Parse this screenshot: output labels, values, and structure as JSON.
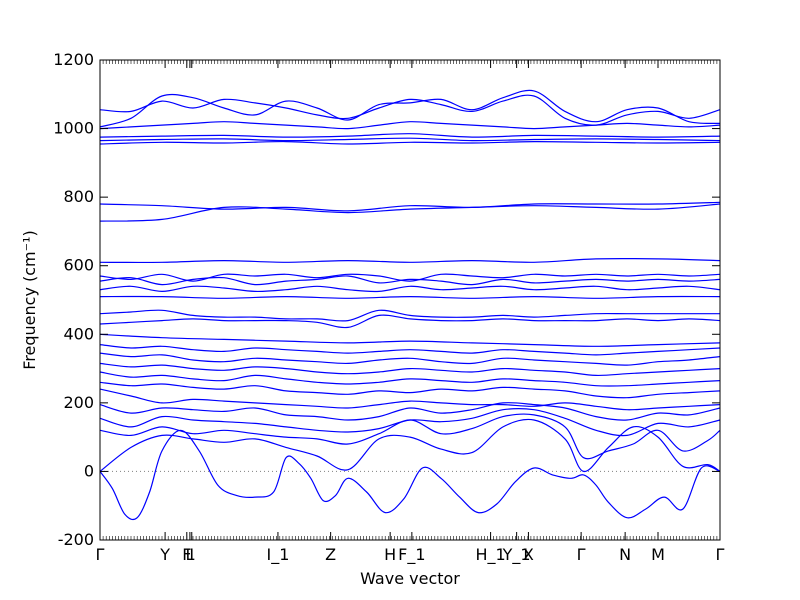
{
  "chart_data": {
    "type": "line",
    "title": "",
    "xlabel": "Wave vector",
    "ylabel": "Frequency ($cm^{-1}$)",
    "ylabel_display": "Frequency (cm⁻¹)",
    "ylim": [
      -200,
      1200
    ],
    "yticks": [
      -200,
      0,
      200,
      400,
      600,
      800,
      1000,
      1200
    ],
    "xlim": [
      0,
      1
    ],
    "grid": false,
    "line_color": "#0000ff",
    "zero_line_color": "#808080",
    "kpoints": [
      {
        "label": "Γ",
        "x": 0.0
      },
      {
        "label": "Y",
        "x": 0.105
      },
      {
        "label": "F",
        "x": 0.14
      },
      {
        "label": "L",
        "x": 0.145
      },
      {
        "label": "I",
        "x": 0.148
      },
      {
        "label": "I_1",
        "x": 0.287
      },
      {
        "label": "Z",
        "x": 0.372
      },
      {
        "label": "H",
        "x": 0.468
      },
      {
        "label": "F_1",
        "x": 0.503
      },
      {
        "label": "H_1",
        "x": 0.63
      },
      {
        "label": "Y_1",
        "x": 0.672
      },
      {
        "label": "X",
        "x": 0.691
      },
      {
        "label": "Γ",
        "x": 0.776
      },
      {
        "label": "N",
        "x": 0.847
      },
      {
        "label": "M",
        "x": 0.9
      },
      {
        "label": "Γ",
        "x": 1.0
      }
    ],
    "series": [
      {
        "x": [
          0,
          0.02,
          0.04,
          0.06,
          0.08,
          0.1,
          0.13,
          0.16,
          0.19,
          0.22,
          0.25,
          0.28,
          0.3,
          0.32,
          0.34,
          0.36,
          0.38,
          0.4,
          0.43,
          0.46,
          0.49,
          0.52,
          0.55,
          0.58,
          0.61,
          0.64,
          0.67,
          0.7,
          0.73,
          0.76,
          0.78,
          0.8,
          0.82,
          0.85,
          0.88,
          0.91,
          0.94,
          0.97,
          1.0
        ],
        "values": [
          0,
          -50,
          -125,
          -135,
          -60,
          60,
          120,
          60,
          -40,
          -70,
          -75,
          -60,
          40,
          25,
          -20,
          -85,
          -70,
          -20,
          -60,
          -120,
          -80,
          10,
          -20,
          -75,
          -120,
          -95,
          -30,
          10,
          -10,
          -20,
          -10,
          -40,
          -90,
          -135,
          -110,
          -75,
          -110,
          10,
          0
        ]
      },
      {
        "x": [
          0,
          0.05,
          0.1,
          0.15,
          0.2,
          0.25,
          0.3,
          0.35,
          0.4,
          0.45,
          0.5,
          0.55,
          0.6,
          0.65,
          0.7,
          0.75,
          0.78,
          0.82,
          0.86,
          0.9,
          0.94,
          0.98,
          1.0
        ],
        "values": [
          0,
          70,
          105,
          95,
          85,
          95,
          70,
          45,
          5,
          95,
          100,
          65,
          55,
          130,
          150,
          95,
          0,
          70,
          130,
          100,
          15,
          20,
          0
        ]
      },
      {
        "x": [
          0,
          0.05,
          0.1,
          0.15,
          0.2,
          0.25,
          0.3,
          0.35,
          0.4,
          0.45,
          0.5,
          0.55,
          0.6,
          0.65,
          0.7,
          0.75,
          0.78,
          0.82,
          0.86,
          0.9,
          0.94,
          0.98,
          1.0
        ],
        "values": [
          120,
          105,
          130,
          110,
          120,
          110,
          100,
          95,
          80,
          110,
          150,
          110,
          125,
          160,
          165,
          130,
          40,
          60,
          80,
          120,
          60,
          90,
          120
        ]
      },
      {
        "x": [
          0,
          0.05,
          0.1,
          0.15,
          0.2,
          0.25,
          0.3,
          0.35,
          0.4,
          0.45,
          0.5,
          0.55,
          0.6,
          0.65,
          0.7,
          0.75,
          0.8,
          0.85,
          0.9,
          0.95,
          1.0
        ],
        "values": [
          155,
          130,
          160,
          150,
          145,
          140,
          130,
          120,
          115,
          125,
          150,
          145,
          155,
          180,
          180,
          155,
          120,
          105,
          140,
          130,
          150
        ]
      },
      {
        "x": [
          0,
          0.05,
          0.1,
          0.15,
          0.2,
          0.25,
          0.3,
          0.35,
          0.4,
          0.45,
          0.5,
          0.55,
          0.6,
          0.65,
          0.7,
          0.75,
          0.8,
          0.85,
          0.9,
          0.95,
          1.0
        ],
        "values": [
          195,
          170,
          185,
          180,
          175,
          185,
          165,
          160,
          150,
          160,
          185,
          170,
          180,
          200,
          195,
          185,
          160,
          150,
          170,
          165,
          185
        ]
      },
      {
        "x": [
          0,
          0.05,
          0.1,
          0.15,
          0.2,
          0.25,
          0.3,
          0.35,
          0.4,
          0.45,
          0.5,
          0.55,
          0.6,
          0.65,
          0.7,
          0.75,
          0.8,
          0.85,
          0.9,
          0.95,
          1.0
        ],
        "values": [
          240,
          220,
          200,
          210,
          205,
          200,
          195,
          190,
          185,
          195,
          205,
          200,
          195,
          195,
          190,
          200,
          190,
          180,
          185,
          190,
          195
        ]
      },
      {
        "x": [
          0,
          0.05,
          0.1,
          0.15,
          0.2,
          0.25,
          0.3,
          0.35,
          0.4,
          0.45,
          0.5,
          0.55,
          0.6,
          0.65,
          0.7,
          0.75,
          0.8,
          0.85,
          0.9,
          0.95,
          1.0
        ],
        "values": [
          260,
          250,
          255,
          245,
          240,
          250,
          235,
          230,
          225,
          235,
          230,
          240,
          235,
          245,
          240,
          235,
          220,
          215,
          225,
          230,
          235
        ]
      },
      {
        "x": [
          0,
          0.05,
          0.1,
          0.15,
          0.2,
          0.25,
          0.3,
          0.35,
          0.4,
          0.45,
          0.5,
          0.55,
          0.6,
          0.65,
          0.7,
          0.75,
          0.8,
          0.85,
          0.9,
          0.95,
          1.0
        ],
        "values": [
          290,
          275,
          280,
          270,
          265,
          280,
          270,
          260,
          255,
          260,
          270,
          265,
          260,
          270,
          265,
          260,
          250,
          250,
          255,
          260,
          265
        ]
      },
      {
        "x": [
          0,
          0.05,
          0.1,
          0.15,
          0.2,
          0.25,
          0.3,
          0.35,
          0.4,
          0.45,
          0.5,
          0.55,
          0.6,
          0.65,
          0.7,
          0.75,
          0.8,
          0.85,
          0.9,
          0.95,
          1.0
        ],
        "values": [
          315,
          305,
          310,
          300,
          295,
          305,
          300,
          290,
          285,
          290,
          300,
          295,
          290,
          300,
          295,
          290,
          280,
          285,
          290,
          295,
          300
        ]
      },
      {
        "x": [
          0,
          0.05,
          0.1,
          0.15,
          0.2,
          0.25,
          0.3,
          0.35,
          0.4,
          0.45,
          0.5,
          0.55,
          0.6,
          0.65,
          0.7,
          0.75,
          0.8,
          0.85,
          0.9,
          0.95,
          1.0
        ],
        "values": [
          345,
          335,
          340,
          325,
          320,
          330,
          325,
          320,
          315,
          325,
          330,
          320,
          315,
          330,
          325,
          320,
          315,
          310,
          320,
          325,
          335
        ]
      },
      {
        "x": [
          0,
          0.05,
          0.1,
          0.15,
          0.2,
          0.25,
          0.3,
          0.35,
          0.4,
          0.45,
          0.5,
          0.55,
          0.6,
          0.65,
          0.7,
          0.75,
          0.8,
          0.85,
          0.9,
          0.95,
          1.0
        ],
        "values": [
          370,
          360,
          365,
          355,
          350,
          360,
          355,
          350,
          345,
          350,
          355,
          350,
          345,
          355,
          350,
          345,
          340,
          345,
          350,
          355,
          360
        ]
      },
      {
        "x": [
          0,
          0.1,
          0.2,
          0.3,
          0.4,
          0.5,
          0.6,
          0.7,
          0.8,
          0.9,
          1.0
        ],
        "values": [
          400,
          390,
          385,
          380,
          375,
          380,
          375,
          370,
          365,
          370,
          375
        ]
      },
      {
        "x": [
          0,
          0.05,
          0.1,
          0.15,
          0.2,
          0.25,
          0.3,
          0.35,
          0.4,
          0.45,
          0.5,
          0.55,
          0.6,
          0.65,
          0.7,
          0.75,
          0.8,
          0.85,
          0.9,
          0.95,
          1.0
        ],
        "values": [
          430,
          435,
          440,
          445,
          440,
          440,
          440,
          435,
          420,
          455,
          445,
          440,
          440,
          445,
          440,
          440,
          440,
          445,
          440,
          445,
          440
        ]
      },
      {
        "x": [
          0,
          0.05,
          0.1,
          0.15,
          0.2,
          0.25,
          0.3,
          0.35,
          0.4,
          0.45,
          0.5,
          0.55,
          0.6,
          0.65,
          0.7,
          0.75,
          0.8,
          0.85,
          0.9,
          0.95,
          1.0
        ],
        "values": [
          460,
          465,
          470,
          455,
          450,
          450,
          445,
          445,
          440,
          470,
          455,
          450,
          450,
          455,
          450,
          455,
          460,
          460,
          460,
          460,
          460
        ]
      },
      {
        "x": [
          0,
          0.1,
          0.2,
          0.3,
          0.4,
          0.5,
          0.6,
          0.7,
          0.8,
          0.9,
          1.0
        ],
        "values": [
          510,
          510,
          505,
          510,
          505,
          510,
          505,
          510,
          505,
          510,
          510
        ]
      },
      {
        "x": [
          0,
          0.05,
          0.1,
          0.15,
          0.2,
          0.25,
          0.3,
          0.35,
          0.4,
          0.45,
          0.5,
          0.55,
          0.6,
          0.65,
          0.7,
          0.75,
          0.8,
          0.85,
          0.9,
          0.95,
          1.0
        ],
        "values": [
          530,
          540,
          525,
          540,
          535,
          525,
          530,
          540,
          530,
          525,
          540,
          530,
          535,
          540,
          530,
          535,
          540,
          530,
          535,
          540,
          530
        ]
      },
      {
        "x": [
          0,
          0.05,
          0.1,
          0.15,
          0.2,
          0.25,
          0.3,
          0.35,
          0.4,
          0.45,
          0.5,
          0.55,
          0.6,
          0.65,
          0.7,
          0.75,
          0.8,
          0.85,
          0.9,
          0.95,
          1.0
        ],
        "values": [
          555,
          565,
          545,
          560,
          565,
          545,
          555,
          560,
          570,
          550,
          560,
          555,
          545,
          560,
          550,
          555,
          560,
          555,
          560,
          555,
          560
        ]
      },
      {
        "x": [
          0,
          0.05,
          0.1,
          0.15,
          0.2,
          0.25,
          0.3,
          0.35,
          0.4,
          0.45,
          0.5,
          0.55,
          0.6,
          0.65,
          0.7,
          0.75,
          0.8,
          0.85,
          0.9,
          0.95,
          1.0
        ],
        "values": [
          570,
          560,
          575,
          555,
          575,
          570,
          575,
          565,
          575,
          570,
          555,
          575,
          570,
          565,
          575,
          570,
          575,
          570,
          575,
          570,
          575
        ]
      },
      {
        "x": [
          0,
          0.1,
          0.2,
          0.3,
          0.4,
          0.5,
          0.6,
          0.7,
          0.8,
          0.9,
          1.0
        ],
        "values": [
          610,
          610,
          615,
          610,
          615,
          610,
          615,
          610,
          620,
          620,
          615
        ]
      },
      {
        "x": [
          0,
          0.1,
          0.2,
          0.3,
          0.4,
          0.5,
          0.6,
          0.7,
          0.8,
          0.9,
          1.0
        ],
        "values": [
          730,
          735,
          770,
          765,
          755,
          765,
          770,
          775,
          770,
          765,
          780
        ]
      },
      {
        "x": [
          0,
          0.1,
          0.2,
          0.3,
          0.4,
          0.5,
          0.6,
          0.7,
          0.8,
          0.9,
          1.0
        ],
        "values": [
          780,
          775,
          765,
          770,
          760,
          775,
          770,
          780,
          780,
          780,
          785
        ]
      },
      {
        "x": [
          0,
          0.1,
          0.2,
          0.3,
          0.4,
          0.5,
          0.6,
          0.7,
          0.8,
          0.9,
          1.0
        ],
        "values": [
          955,
          960,
          958,
          962,
          955,
          960,
          958,
          962,
          960,
          958,
          960
        ]
      },
      {
        "x": [
          0,
          0.1,
          0.2,
          0.3,
          0.4,
          0.5,
          0.6,
          0.7,
          0.8,
          0.9,
          1.0
        ],
        "values": [
          965,
          968,
          970,
          965,
          968,
          972,
          965,
          968,
          970,
          968,
          965
        ]
      },
      {
        "x": [
          0,
          0.1,
          0.2,
          0.3,
          0.4,
          0.5,
          0.6,
          0.7,
          0.8,
          0.9,
          1.0
        ],
        "values": [
          975,
          978,
          980,
          975,
          978,
          985,
          975,
          980,
          978,
          975,
          978
        ]
      },
      {
        "x": [
          0,
          0.05,
          0.1,
          0.15,
          0.2,
          0.25,
          0.3,
          0.35,
          0.4,
          0.45,
          0.5,
          0.55,
          0.6,
          0.65,
          0.7,
          0.75,
          0.8,
          0.85,
          0.9,
          0.95,
          1.0
        ],
        "values": [
          1000,
          1005,
          1010,
          1015,
          1020,
          1015,
          1010,
          1005,
          1000,
          1010,
          1020,
          1015,
          1010,
          1005,
          1000,
          1005,
          1010,
          1015,
          1010,
          1005,
          1010
        ]
      },
      {
        "x": [
          0,
          0.05,
          0.1,
          0.15,
          0.2,
          0.25,
          0.3,
          0.35,
          0.4,
          0.45,
          0.5,
          0.55,
          0.6,
          0.65,
          0.7,
          0.75,
          0.8,
          0.85,
          0.9,
          0.95,
          1.0
        ],
        "values": [
          1055,
          1050,
          1080,
          1060,
          1085,
          1075,
          1060,
          1040,
          1030,
          1060,
          1085,
          1070,
          1050,
          1080,
          1095,
          1030,
          1010,
          1040,
          1050,
          1030,
          1055
        ]
      },
      {
        "x": [
          0,
          0.05,
          0.1,
          0.15,
          0.2,
          0.25,
          0.3,
          0.35,
          0.4,
          0.45,
          0.5,
          0.55,
          0.6,
          0.65,
          0.7,
          0.75,
          0.8,
          0.85,
          0.9,
          0.95,
          1.0
        ],
        "values": [
          1005,
          1030,
          1095,
          1090,
          1060,
          1040,
          1080,
          1060,
          1025,
          1070,
          1075,
          1085,
          1055,
          1090,
          1110,
          1050,
          1020,
          1055,
          1060,
          1020,
          1015
        ]
      }
    ]
  }
}
